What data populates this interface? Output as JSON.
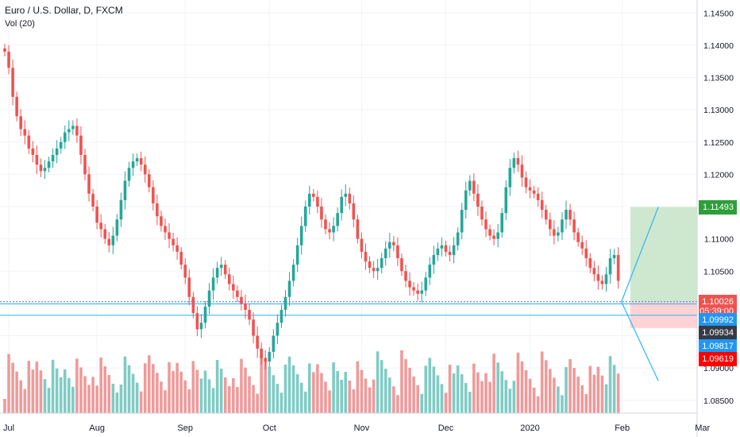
{
  "header": {
    "symbol_title": "Euro / U.S. Dollar, D, FXCM",
    "indicator": "Vol (20)"
  },
  "colors": {
    "up": "#26a69a",
    "down": "#ef5350",
    "up_volume": "#80cbc4",
    "down_volume": "#ef9a9a",
    "target_zone": "#c8e6c9",
    "stop_zone": "#ffcdd2",
    "trend_line": "#29b6f6",
    "grid": "#f0f3fa"
  },
  "chart_data": {
    "type": "candlestick",
    "y_axis": {
      "ylim": [
        1.083,
        1.147
      ],
      "ticks": [
        "1.14500",
        "1.14000",
        "1.13500",
        "1.13000",
        "1.12500",
        "1.12000",
        "1.11500",
        "1.11000",
        "1.10500",
        "1.10000",
        "1.09500",
        "1.09000",
        "1.08500"
      ]
    },
    "x_axis": {
      "labels": [
        {
          "text": "Jul",
          "bar": 1
        },
        {
          "text": "Aug",
          "bar": 23
        },
        {
          "text": "Sep",
          "bar": 45
        },
        {
          "text": "Oct",
          "bar": 66
        },
        {
          "text": "Nov",
          "bar": 89
        },
        {
          "text": "Dec",
          "bar": 110
        },
        {
          "text": "2020",
          "bar": 131
        },
        {
          "text": "Feb",
          "bar": 154
        },
        {
          "text": "Mar",
          "bar": 174
        }
      ]
    },
    "closes": [
      1.139,
      1.1365,
      1.132,
      1.129,
      1.127,
      1.126,
      1.124,
      1.123,
      1.1215,
      1.1205,
      1.121,
      1.122,
      1.123,
      1.124,
      1.125,
      1.1265,
      1.127,
      1.1275,
      1.126,
      1.123,
      1.12,
      1.117,
      1.115,
      1.1125,
      1.1115,
      1.11,
      1.109,
      1.1105,
      1.113,
      1.116,
      1.119,
      1.121,
      1.122,
      1.1225,
      1.1215,
      1.12,
      1.118,
      1.1155,
      1.1135,
      1.112,
      1.111,
      1.11,
      1.109,
      1.108,
      1.106,
      1.104,
      1.101,
      1.0985,
      1.096,
      1.097,
      1.0995,
      1.102,
      1.104,
      1.1055,
      1.106,
      1.1045,
      1.103,
      1.102,
      1.101,
      1.1,
      1.099,
      1.0975,
      1.095,
      1.093,
      1.0915,
      1.091,
      1.0925,
      1.095,
      1.097,
      1.099,
      1.101,
      1.1035,
      1.106,
      1.109,
      1.112,
      1.115,
      1.117,
      1.1165,
      1.115,
      1.113,
      1.1115,
      1.111,
      1.112,
      1.114,
      1.1165,
      1.117,
      1.1155,
      1.113,
      1.11,
      1.108,
      1.1065,
      1.1055,
      1.105,
      1.1055,
      1.107,
      1.1085,
      1.1095,
      1.109,
      1.107,
      1.105,
      1.1035,
      1.1025,
      1.102,
      1.1015,
      1.102,
      1.104,
      1.106,
      1.1075,
      1.1085,
      1.109,
      1.108,
      1.1075,
      1.109,
      1.111,
      1.1145,
      1.1175,
      1.119,
      1.117,
      1.115,
      1.113,
      1.1115,
      1.1105,
      1.11,
      1.111,
      1.114,
      1.118,
      1.121,
      1.1225,
      1.1215,
      1.1195,
      1.118,
      1.1175,
      1.117,
      1.116,
      1.1145,
      1.113,
      1.1115,
      1.1105,
      1.111,
      1.113,
      1.1145,
      1.113,
      1.111,
      1.1095,
      1.1085,
      1.107,
      1.1055,
      1.1045,
      1.1035,
      1.103,
      1.1045,
      1.107,
      1.1075,
      1.1035
    ],
    "projection": {
      "up_target": 1.11493,
      "down_target": 1.088
    },
    "trade_zone": {
      "entry": 1.10026,
      "take_profit": 1.11493,
      "stop_loss": 1.09619
    },
    "horizontal_lines": [
      1.10026,
      1.09992,
      1.09817
    ],
    "price_labels": [
      {
        "text": "1.11493",
        "price": 1.11493,
        "color": "#2e9e3a"
      },
      {
        "text": "1.10026",
        "price": 1.10026,
        "color": "#ef5350"
      },
      {
        "text": "05:39:00",
        "price": 1.0988,
        "color": "#ef5350"
      },
      {
        "text": "1.09992",
        "price": 1.0974,
        "color": "#2196f3"
      },
      {
        "text": "1.09934",
        "price": 1.0954,
        "color": "#363a45"
      },
      {
        "text": "1.09817",
        "price": 1.0934,
        "color": "#2196f3"
      },
      {
        "text": "1.09619",
        "price": 1.0914,
        "color": "#ff0000"
      }
    ]
  }
}
